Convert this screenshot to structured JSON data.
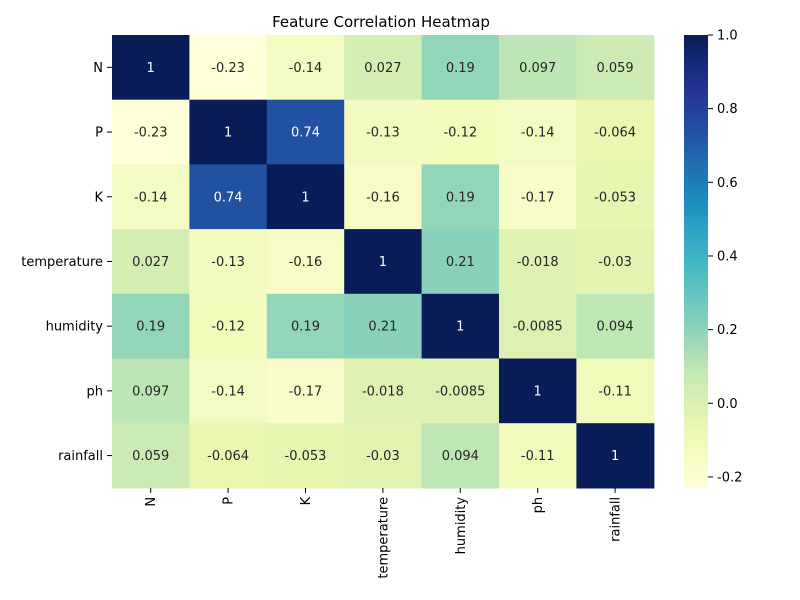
{
  "chart_data": {
    "type": "heatmap",
    "title": "Feature Correlation Heatmap",
    "row_labels": [
      "N",
      "P",
      "K",
      "temperature",
      "humidity",
      "ph",
      "rainfall"
    ],
    "col_labels": [
      "N",
      "P",
      "K",
      "temperature",
      "humidity",
      "ph",
      "rainfall"
    ],
    "values": [
      [
        1,
        -0.23,
        -0.14,
        0.027,
        0.19,
        0.097,
        0.059
      ],
      [
        -0.23,
        1,
        0.74,
        -0.13,
        -0.12,
        -0.14,
        -0.064
      ],
      [
        -0.14,
        0.74,
        1,
        -0.16,
        0.19,
        -0.17,
        -0.053
      ],
      [
        0.027,
        -0.13,
        -0.16,
        1,
        0.21,
        -0.018,
        -0.03
      ],
      [
        0.19,
        -0.12,
        0.19,
        0.21,
        1,
        -0.0085,
        0.094
      ],
      [
        0.097,
        -0.14,
        -0.17,
        -0.018,
        -0.0085,
        1,
        -0.11
      ],
      [
        0.059,
        -0.064,
        -0.053,
        -0.03,
        0.094,
        -0.11,
        1
      ]
    ],
    "annotations": [
      [
        "1",
        "-0.23",
        "-0.14",
        "0.027",
        "0.19",
        "0.097",
        "0.059"
      ],
      [
        "-0.23",
        "1",
        "0.74",
        "-0.13",
        "-0.12",
        "-0.14",
        "-0.064"
      ],
      [
        "-0.14",
        "0.74",
        "1",
        "-0.16",
        "0.19",
        "-0.17",
        "-0.053"
      ],
      [
        "0.027",
        "-0.13",
        "-0.16",
        "1",
        "0.21",
        "-0.018",
        "-0.03"
      ],
      [
        "0.19",
        "-0.12",
        "0.19",
        "0.21",
        "1",
        "-0.0085",
        "0.094"
      ],
      [
        "0.097",
        "-0.14",
        "-0.17",
        "-0.018",
        "-0.0085",
        "1",
        "-0.11"
      ],
      [
        "0.059",
        "-0.064",
        "-0.053",
        "-0.03",
        "0.094",
        "-0.11",
        "1"
      ]
    ],
    "colormap": "YlGnBu",
    "colormap_stops": [
      "#ffffd9",
      "#edf8b1",
      "#c7e9b4",
      "#7fcdbb",
      "#41b6c4",
      "#1d91c0",
      "#225ea8",
      "#253494",
      "#081d58"
    ],
    "vmin": -0.23,
    "vmax": 1,
    "colorbar_ticks": [
      "-0.2",
      "0.0",
      "0.2",
      "0.4",
      "0.6",
      "0.8",
      "1.0"
    ],
    "colorbar_tick_values": [
      -0.2,
      0,
      0.2,
      0.4,
      0.6,
      0.8,
      1.0
    ],
    "grid": false,
    "legend": "colorbar-right"
  }
}
